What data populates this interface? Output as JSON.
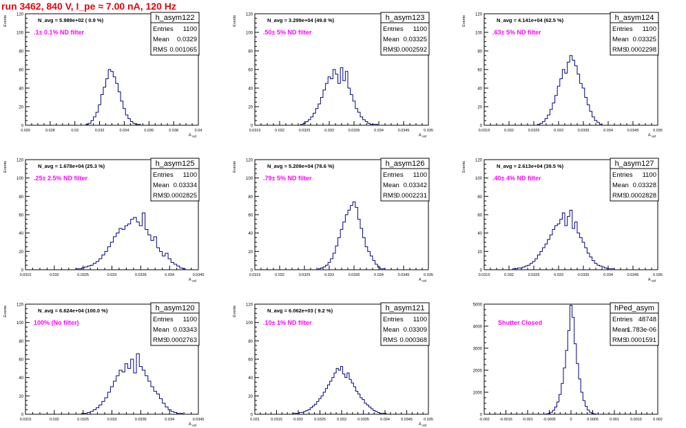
{
  "run_title": "run 3462,   840 V, I_pe ≈ 7.00 nA, 120 Hz",
  "colors": {
    "title": "#e8000b",
    "histogram": "#000080",
    "annotation": "#ff00ff",
    "frame": "#000000"
  },
  "chart_data": [
    {
      "type": "histogram",
      "name": "h_asym122",
      "title": "N_avg = 5.989e+02 ( 0.9 %)",
      "annotation": ".1± 0.1% ND filter",
      "xlabel": "A_uid",
      "ylabel": "Events",
      "xlim": [
        0.026,
        0.04
      ],
      "ylim": [
        0,
        120
      ],
      "xticks": [
        "0.026",
        "0.028",
        "0.03",
        "0.032",
        "0.034",
        "0.036",
        "0.038",
        "0.04"
      ],
      "yticks": [
        "0",
        "20",
        "40",
        "60",
        "80",
        "100",
        "120"
      ],
      "stats": [
        [
          "Entries",
          "1100"
        ],
        [
          "Mean",
          "0.0329"
        ],
        [
          "RMS",
          "0.001065"
        ]
      ],
      "x": [
        0.031,
        0.0312,
        0.0314,
        0.0316,
        0.0318,
        0.032,
        0.0322,
        0.0324,
        0.0326,
        0.0328,
        0.033,
        0.0332,
        0.0334,
        0.0336,
        0.0338,
        0.034,
        0.0342,
        0.0344,
        0.0346,
        0.0348,
        0.035,
        0.0352
      ],
      "values": [
        1,
        2,
        5,
        9,
        14,
        22,
        33,
        41,
        50,
        60,
        58,
        52,
        45,
        36,
        26,
        18,
        11,
        7,
        4,
        2,
        1,
        1
      ]
    },
    {
      "type": "histogram",
      "name": "h_asym123",
      "title": "N_avg = 3.299e+04 (49.8 %)",
      "annotation": ".50± 5% ND filter",
      "xlabel": "A_uid",
      "ylabel": "Events",
      "xlim": [
        0.0315,
        0.035
      ],
      "ylim": [
        0,
        120
      ],
      "xticks": [
        "0.0315",
        "0.032",
        "0.0325",
        "0.033",
        "0.0335",
        "0.034",
        "0.0345",
        "0.035"
      ],
      "yticks": [
        "0",
        "20",
        "40",
        "60",
        "80",
        "100",
        "120"
      ],
      "stats": [
        [
          "Entries",
          "1100"
        ],
        [
          "Mean",
          "0.03325"
        ],
        [
          "RMS",
          "0.0002592"
        ]
      ],
      "x": [
        0.03245,
        0.0325,
        0.03255,
        0.0326,
        0.03265,
        0.0327,
        0.03275,
        0.0328,
        0.03285,
        0.0329,
        0.03295,
        0.033,
        0.03305,
        0.0331,
        0.03315,
        0.0332,
        0.03325,
        0.0333,
        0.03335,
        0.0334,
        0.03345,
        0.0335,
        0.03355,
        0.0336,
        0.03365,
        0.0337,
        0.03375,
        0.0338,
        0.03385,
        0.0339,
        0.03395
      ],
      "values": [
        1,
        2,
        4,
        6,
        9,
        13,
        18,
        23,
        30,
        38,
        45,
        52,
        50,
        60,
        55,
        45,
        62,
        48,
        58,
        40,
        33,
        26,
        18,
        14,
        9,
        6,
        4,
        2,
        1,
        1,
        1
      ]
    },
    {
      "type": "histogram",
      "name": "h_asym124",
      "title": "N_avg = 4.141e+04 (62.5 %)",
      "annotation": ".63± 5% ND filter",
      "xlabel": "A_uid",
      "ylabel": "Events",
      "xlim": [
        0.0315,
        0.035
      ],
      "ylim": [
        0,
        120
      ],
      "xticks": [
        "0.0315",
        "0.032",
        "0.0325",
        "0.033",
        "0.0335",
        "0.034",
        "0.0345",
        "0.035"
      ],
      "yticks": [
        "0",
        "20",
        "40",
        "60",
        "80",
        "100",
        "120"
      ],
      "stats": [
        [
          "Entries",
          "1100"
        ],
        [
          "Mean",
          "0.03325"
        ],
        [
          "RMS",
          "0.0002298"
        ]
      ],
      "x": [
        0.0326,
        0.03265,
        0.0327,
        0.03275,
        0.0328,
        0.03285,
        0.0329,
        0.03295,
        0.033,
        0.03305,
        0.0331,
        0.03315,
        0.0332,
        0.03325,
        0.0333,
        0.03335,
        0.0334,
        0.03345,
        0.0335,
        0.03355,
        0.0336,
        0.03365,
        0.0337,
        0.03375,
        0.0338,
        0.03385
      ],
      "values": [
        1,
        2,
        4,
        7,
        11,
        17,
        24,
        32,
        42,
        50,
        60,
        56,
        68,
        75,
        70,
        64,
        55,
        45,
        40,
        30,
        22,
        15,
        9,
        5,
        3,
        1
      ]
    },
    {
      "type": "histogram",
      "name": "h_asym125",
      "title": "N_avg = 1.678e+04 (25.3 %)",
      "annotation": ".25± 2.5% ND filter",
      "xlabel": "A_uid",
      "ylabel": "Events",
      "xlim": [
        0.0315,
        0.0345
      ],
      "ylim": [
        0,
        120
      ],
      "xticks": [
        "0.0315",
        "0.032",
        "0.0325",
        "0.033",
        "0.0335",
        "0.034",
        "0.0345"
      ],
      "yticks": [
        "0",
        "20",
        "40",
        "60",
        "80",
        "100",
        "120"
      ],
      "stats": [
        [
          "Entries",
          "1100"
        ],
        [
          "Mean",
          "0.03334"
        ],
        [
          "RMS",
          "0.0002825"
        ]
      ],
      "x": [
        0.0324,
        0.03245,
        0.0325,
        0.03255,
        0.0326,
        0.03265,
        0.0327,
        0.03275,
        0.0328,
        0.03285,
        0.0329,
        0.03295,
        0.033,
        0.03305,
        0.0331,
        0.03315,
        0.0332,
        0.03325,
        0.0333,
        0.03335,
        0.0334,
        0.03345,
        0.0335,
        0.03355,
        0.0336,
        0.03365,
        0.0337,
        0.03375,
        0.0338,
        0.03385,
        0.0339,
        0.03395,
        0.034,
        0.03405,
        0.0341,
        0.03415,
        0.0342,
        0.03425
      ],
      "values": [
        1,
        1,
        2,
        3,
        4,
        5,
        7,
        9,
        12,
        16,
        20,
        25,
        30,
        36,
        40,
        45,
        44,
        48,
        50,
        55,
        57,
        52,
        48,
        62,
        44,
        38,
        32,
        36,
        24,
        20,
        15,
        18,
        12,
        8,
        6,
        4,
        2,
        1
      ]
    },
    {
      "type": "histogram",
      "name": "h_asym126",
      "title": "N_avg = 5.209e+04 (78.6 %)",
      "annotation": ".79± 5% ND filter",
      "xlabel": "A_uid",
      "ylabel": "Events",
      "xlim": [
        0.0315,
        0.035
      ],
      "ylim": [
        0,
        120
      ],
      "xticks": [
        "0.0315",
        "0.032",
        "0.0325",
        "0.033",
        "0.0335",
        "0.034",
        "0.0345",
        "0.035"
      ],
      "yticks": [
        "0",
        "20",
        "40",
        "60",
        "80",
        "100",
        "120"
      ],
      "stats": [
        [
          "Entries",
          "1100"
        ],
        [
          "Mean",
          "0.03342"
        ],
        [
          "RMS",
          "0.0002231"
        ]
      ],
      "x": [
        0.0328,
        0.03285,
        0.0329,
        0.03295,
        0.033,
        0.03305,
        0.0331,
        0.03315,
        0.0332,
        0.03325,
        0.0333,
        0.03335,
        0.0334,
        0.03345,
        0.0335,
        0.03355,
        0.0336,
        0.03365,
        0.0337,
        0.03375,
        0.0338,
        0.03385,
        0.0339,
        0.03395,
        0.034,
        0.03405,
        0.0341
      ],
      "values": [
        1,
        2,
        3,
        5,
        8,
        12,
        18,
        26,
        35,
        44,
        52,
        60,
        65,
        70,
        74,
        68,
        55,
        45,
        35,
        25,
        20,
        15,
        10,
        6,
        3,
        1,
        1
      ]
    },
    {
      "type": "histogram",
      "name": "h_asym127",
      "title": "N_avg = 2.613e+04 (39.5 %)",
      "annotation": ".40± 4% ND filter",
      "xlabel": "A_uid",
      "ylabel": "Events",
      "xlim": [
        0.0315,
        0.035
      ],
      "ylim": [
        0,
        120
      ],
      "xticks": [
        "0.0315",
        "0.032",
        "0.0325",
        "0.033",
        "0.0335",
        "0.034",
        "0.0345",
        "0.035"
      ],
      "yticks": [
        "0",
        "20",
        "40",
        "60",
        "80",
        "100",
        "120"
      ],
      "stats": [
        [
          "Entries",
          "1100"
        ],
        [
          "Mean",
          "0.03328"
        ],
        [
          "RMS",
          "0.0002828"
        ]
      ],
      "x": [
        0.0321,
        0.03215,
        0.0322,
        0.03225,
        0.0323,
        0.03235,
        0.0324,
        0.03245,
        0.0325,
        0.03255,
        0.0326,
        0.03265,
        0.0327,
        0.03275,
        0.0328,
        0.03285,
        0.0329,
        0.03295,
        0.033,
        0.03305,
        0.0331,
        0.03315,
        0.0332,
        0.03325,
        0.0333,
        0.03335,
        0.0334,
        0.03345,
        0.0335,
        0.03355,
        0.0336,
        0.03365,
        0.0337,
        0.03375,
        0.0338,
        0.03385,
        0.0339,
        0.03395,
        0.034,
        0.03405,
        0.0341
      ],
      "values": [
        1,
        1,
        2,
        2,
        3,
        4,
        5,
        7,
        9,
        12,
        16,
        20,
        24,
        28,
        33,
        38,
        44,
        48,
        50,
        55,
        62,
        48,
        58,
        65,
        45,
        52,
        40,
        35,
        30,
        24,
        18,
        14,
        10,
        7,
        5,
        4,
        3,
        2,
        1,
        1,
        1
      ]
    },
    {
      "type": "histogram",
      "name": "h_asym120",
      "title": "N_avg = 6.624e+04 (100.0 %)",
      "annotation": "100% (No filter)",
      "xlabel": "A_uid",
      "ylabel": "Events",
      "xlim": [
        0.0315,
        0.0345
      ],
      "ylim": [
        0,
        120
      ],
      "xticks": [
        "0.0315",
        "0.032",
        "0.0325",
        "0.033",
        "0.0335",
        "0.034",
        "0.0345"
      ],
      "yticks": [
        "0",
        "20",
        "40",
        "60",
        "80",
        "100",
        "120"
      ],
      "stats": [
        [
          "Entries",
          "1100"
        ],
        [
          "Mean",
          "0.03343"
        ],
        [
          "RMS",
          "0.0002763"
        ]
      ],
      "x": [
        0.0325,
        0.03255,
        0.0326,
        0.03265,
        0.0327,
        0.03275,
        0.0328,
        0.03285,
        0.0329,
        0.03295,
        0.033,
        0.03305,
        0.0331,
        0.03315,
        0.0332,
        0.03325,
        0.0333,
        0.03335,
        0.0334,
        0.03345,
        0.0335,
        0.03355,
        0.0336,
        0.03365,
        0.0337,
        0.03375,
        0.0338,
        0.03385,
        0.0339,
        0.03395,
        0.034,
        0.03405,
        0.0341,
        0.03415,
        0.0342
      ],
      "values": [
        1,
        1,
        2,
        3,
        5,
        7,
        10,
        14,
        18,
        24,
        30,
        36,
        42,
        48,
        46,
        55,
        50,
        60,
        45,
        66,
        52,
        48,
        42,
        36,
        30,
        25,
        22,
        17,
        12,
        8,
        5,
        3,
        2,
        1,
        1
      ]
    },
    {
      "type": "histogram",
      "name": "h_asym121",
      "title": "N_avg = 6.062e+03 ( 9.2 %)",
      "annotation": ".10± 1% ND filter",
      "xlabel": "A_uid",
      "ylabel": "Events",
      "xlim": [
        0.031,
        0.035
      ],
      "ylim": [
        0,
        120
      ],
      "xticks": [
        "0.031",
        "0.0315",
        "0.032",
        "0.0325",
        "0.033",
        "0.0335",
        "0.034",
        "0.0345",
        "0.035"
      ],
      "yticks": [
        "0",
        "20",
        "40",
        "60",
        "80",
        "100",
        "120"
      ],
      "stats": [
        [
          "Entries",
          "1100"
        ],
        [
          "Mean",
          "0.03309"
        ],
        [
          "RMS",
          "0.000368"
        ]
      ],
      "x": [
        0.0319,
        0.03195,
        0.032,
        0.03205,
        0.0321,
        0.03215,
        0.0322,
        0.03225,
        0.0323,
        0.03235,
        0.0324,
        0.03245,
        0.0325,
        0.03255,
        0.0326,
        0.03265,
        0.0327,
        0.03275,
        0.0328,
        0.03285,
        0.0329,
        0.03295,
        0.033,
        0.03305,
        0.0331,
        0.03315,
        0.0332,
        0.03325,
        0.0333,
        0.03335,
        0.0334,
        0.03345,
        0.0335,
        0.03355,
        0.0336,
        0.03365,
        0.0337,
        0.03375,
        0.0338,
        0.03385,
        0.0339,
        0.03395,
        0.034
      ],
      "values": [
        1,
        1,
        1,
        2,
        2,
        3,
        4,
        5,
        7,
        9,
        11,
        14,
        17,
        20,
        24,
        28,
        32,
        36,
        40,
        45,
        50,
        48,
        52,
        44,
        40,
        45,
        38,
        34,
        30,
        25,
        22,
        18,
        16,
        12,
        10,
        8,
        6,
        4,
        3,
        2,
        1,
        1,
        1
      ]
    },
    {
      "type": "histogram",
      "name": "hPed_asym",
      "title": "",
      "annotation": "Shutter Closed",
      "xlabel": "",
      "ylabel": "",
      "xlim": [
        -0.002,
        0.002
      ],
      "ylim": [
        0,
        5000
      ],
      "xticks": [
        "-0.002",
        "-0.0015",
        "-0.001",
        "-0.0005",
        "0",
        "0.0005",
        "0.001",
        "0.0015",
        "0.002"
      ],
      "yticks": [
        "0",
        "1000",
        "2000",
        "3000",
        "4000",
        "5000"
      ],
      "stats": [
        [
          "Entries",
          "48748"
        ],
        [
          "Mean",
          "1.783e-06"
        ],
        [
          "RMS",
          "0.0001591"
        ]
      ],
      "x": [
        -0.0006,
        -0.00055,
        -0.0005,
        -0.00045,
        -0.0004,
        -0.00035,
        -0.0003,
        -0.00025,
        -0.0002,
        -0.00015,
        -0.0001,
        -5e-05,
        0,
        5e-05,
        0.0001,
        0.00015,
        0.0002,
        0.00025,
        0.0003,
        0.00035,
        0.0004,
        0.00045,
        0.0005,
        0.00055,
        0.0006
      ],
      "values": [
        5,
        15,
        40,
        90,
        180,
        330,
        560,
        900,
        1400,
        2100,
        2900,
        3800,
        4950,
        4400,
        3200,
        2300,
        1600,
        1000,
        620,
        360,
        190,
        90,
        40,
        15,
        5
      ]
    }
  ]
}
